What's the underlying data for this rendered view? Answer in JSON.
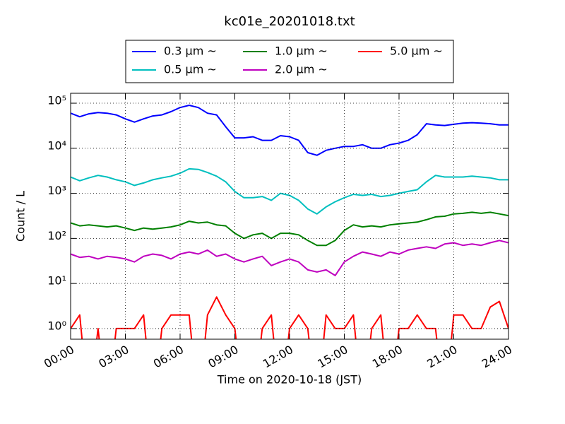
{
  "chart_data": {
    "type": "line",
    "title": "kc01e_20201018.txt",
    "x_label": "Time on 2020-10-18 (JST)",
    "y_label": "Count / L",
    "log_y": true,
    "grid": true,
    "legend_position": "top",
    "x": [
      0,
      0.5,
      1,
      1.5,
      2,
      2.5,
      3,
      3.5,
      4,
      4.5,
      5,
      5.5,
      6,
      6.5,
      7,
      7.5,
      8,
      8.5,
      9,
      9.5,
      10,
      10.5,
      11,
      11.5,
      12,
      12.5,
      13,
      13.5,
      14,
      14.5,
      15,
      15.5,
      16,
      16.5,
      17,
      17.5,
      18,
      18.5,
      19,
      19.5,
      20,
      20.5,
      21,
      21.5,
      22,
      22.5,
      23,
      23.5,
      24
    ],
    "xlim": [
      0,
      24
    ],
    "xticks": [
      {
        "value": 0,
        "label": "00:00"
      },
      {
        "value": 3,
        "label": "03:00"
      },
      {
        "value": 6,
        "label": "06:00"
      },
      {
        "value": 9,
        "label": "09:00"
      },
      {
        "value": 12,
        "label": "12:00"
      },
      {
        "value": 15,
        "label": "15:00"
      },
      {
        "value": 18,
        "label": "18:00"
      },
      {
        "value": 21,
        "label": "21:00"
      },
      {
        "value": 24,
        "label": "24:00"
      }
    ],
    "ylim": [
      0.58,
      166000
    ],
    "yticks": [
      {
        "value": 1,
        "label": "10⁰"
      },
      {
        "value": 10,
        "label": "10¹"
      },
      {
        "value": 100,
        "label": "10²"
      },
      {
        "value": 1000,
        "label": "10³"
      },
      {
        "value": 10000,
        "label": "10⁴"
      },
      {
        "value": 100000,
        "label": "10⁵"
      }
    ],
    "series": [
      {
        "name": "0.3 µm  ~",
        "color": "#0000ff",
        "values": [
          60000,
          50000,
          58000,
          62000,
          60000,
          55000,
          45000,
          38000,
          45000,
          52000,
          55000,
          65000,
          80000,
          90000,
          80000,
          60000,
          55000,
          30000,
          17000,
          17000,
          18000,
          15000,
          15000,
          19000,
          18000,
          15000,
          8000,
          7000,
          9000,
          10000,
          11000,
          11000,
          12000,
          10000,
          10000,
          12000,
          13000,
          15000,
          20000,
          35000,
          33000,
          32000,
          34000,
          36000,
          37000,
          36000,
          35000,
          33000,
          33000
        ]
      },
      {
        "name": "0.5 µm  ~",
        "color": "#00bfbf",
        "values": [
          2300,
          1900,
          2200,
          2500,
          2300,
          2000,
          1800,
          1500,
          1700,
          2000,
          2200,
          2400,
          2800,
          3500,
          3400,
          2900,
          2400,
          1800,
          1100,
          800,
          800,
          850,
          700,
          1000,
          900,
          700,
          450,
          350,
          500,
          650,
          800,
          950,
          900,
          950,
          850,
          900,
          1000,
          1100,
          1200,
          1800,
          2500,
          2300,
          2300,
          2300,
          2400,
          2300,
          2200,
          2000,
          2000
        ]
      },
      {
        "name": "1.0 µm  ~",
        "color": "#008000",
        "values": [
          220,
          190,
          200,
          190,
          180,
          190,
          170,
          150,
          170,
          160,
          170,
          180,
          200,
          240,
          220,
          230,
          200,
          190,
          130,
          100,
          120,
          130,
          100,
          130,
          130,
          120,
          90,
          70,
          70,
          90,
          150,
          200,
          180,
          190,
          180,
          200,
          210,
          220,
          230,
          260,
          300,
          310,
          350,
          360,
          380,
          360,
          380,
          350,
          320
        ]
      },
      {
        "name": "2.0 µm  ~",
        "color": "#bf00bf",
        "values": [
          45,
          38,
          40,
          35,
          40,
          38,
          35,
          30,
          40,
          45,
          42,
          35,
          45,
          50,
          45,
          55,
          40,
          45,
          35,
          30,
          35,
          40,
          25,
          30,
          35,
          30,
          20,
          18,
          20,
          15,
          30,
          40,
          50,
          45,
          40,
          50,
          45,
          55,
          60,
          65,
          60,
          75,
          80,
          70,
          75,
          70,
          80,
          90,
          80
        ]
      },
      {
        "name": "5.0 µm  ~",
        "color": "#ff0000",
        "values": [
          1,
          2,
          0,
          1,
          0,
          1,
          1,
          1,
          2,
          0,
          1,
          2,
          2,
          2,
          0,
          2,
          5,
          2,
          1,
          0,
          0,
          1,
          2,
          0,
          1,
          2,
          1,
          0,
          2,
          1,
          1,
          2,
          0,
          1,
          2,
          0,
          1,
          1,
          2,
          1,
          1,
          0,
          2,
          2,
          1,
          1,
          3,
          4,
          1
        ]
      }
    ]
  }
}
